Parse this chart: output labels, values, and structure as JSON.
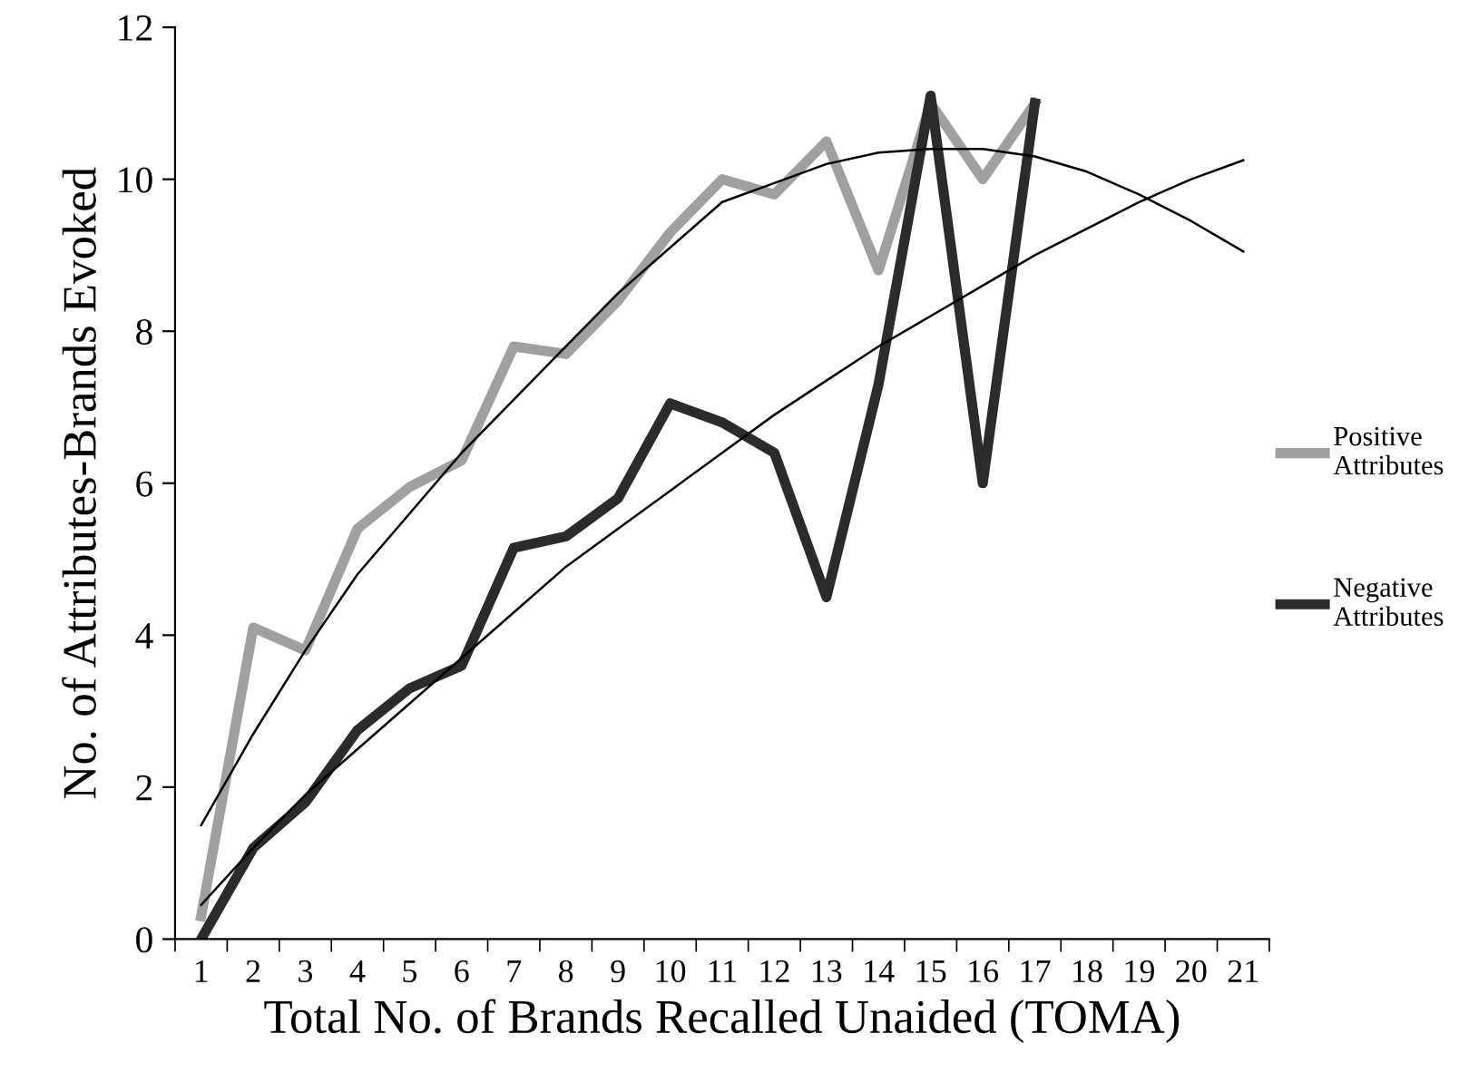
{
  "chart_data": {
    "type": "line",
    "xlabel": "Total No. of Brands Recalled Unaided (TOMA)",
    "ylabel": "No. of Attributes-Brands Evoked",
    "categories": [
      "1",
      "2",
      "3",
      "4",
      "5",
      "6",
      "7",
      "8",
      "9",
      "10",
      "11",
      "12",
      "13",
      "14",
      "15",
      "16",
      "17",
      "18",
      "19",
      "20",
      "21"
    ],
    "series": [
      {
        "name": "Positive\nAttributes",
        "color": "#a0a0a0",
        "values": [
          0.3,
          4.1,
          3.8,
          5.4,
          5.95,
          6.3,
          7.8,
          7.7,
          8.4,
          9.3,
          10.0,
          9.8,
          10.5,
          8.8,
          11.0,
          10.0,
          11.0,
          null,
          null,
          null,
          null
        ]
      },
      {
        "name": "Negative\nAttributes",
        "color": "#2b2b2b",
        "values": [
          0,
          1.2,
          1.8,
          2.75,
          3.3,
          3.6,
          5.15,
          5.3,
          5.8,
          7.05,
          6.8,
          6.4,
          4.5,
          7.3,
          11.1,
          6.0,
          11.0,
          null,
          null,
          null,
          null
        ]
      },
      {
        "color": "#000000",
        "values": [
          1.5,
          2.7,
          3.8,
          4.8,
          5.6,
          6.4,
          7.1,
          7.8,
          8.5,
          9.1,
          9.7,
          9.95,
          10.2,
          10.35,
          10.4,
          10.4,
          10.3,
          10.1,
          9.8,
          9.45,
          9.05
        ]
      },
      {
        "color": "#000000",
        "values": [
          0.45,
          1.2,
          1.9,
          2.5,
          3.1,
          3.7,
          4.3,
          4.9,
          5.4,
          5.9,
          6.4,
          6.9,
          7.35,
          7.8,
          8.2,
          8.6,
          9.0,
          9.35,
          9.7,
          10.0,
          10.25
        ]
      }
    ],
    "ylim": [
      0,
      12
    ],
    "yticks": [
      0,
      2,
      4,
      6,
      8,
      10,
      12
    ],
    "grid": false,
    "legend": "right",
    "marker": "none",
    "line_style": "solid"
  }
}
